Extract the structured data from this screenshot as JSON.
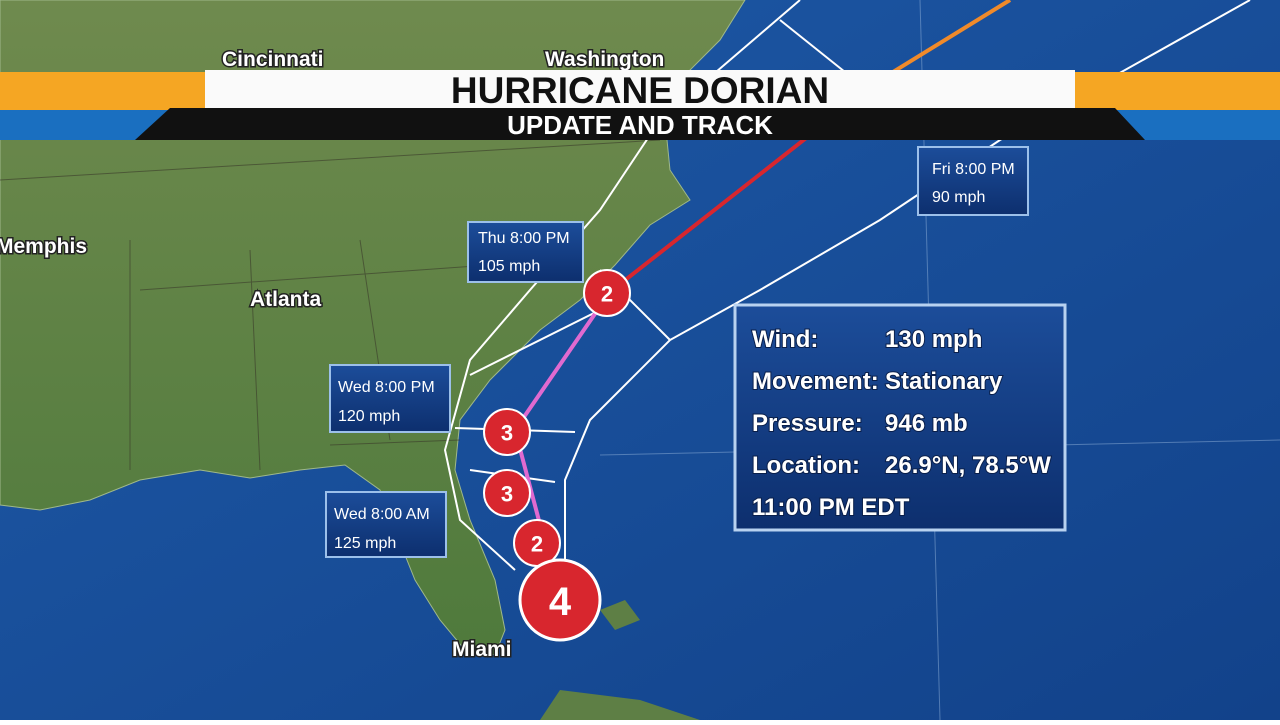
{
  "header": {
    "title": "HURRICANE DORIAN",
    "subtitle": "UPDATE AND TRACK"
  },
  "cities": [
    "Cincinnati",
    "Washington",
    "Memphis",
    "Atlanta",
    "Miami"
  ],
  "forecast_points": [
    {
      "time": "Fri 8:00 PM",
      "wind": "90 mph"
    },
    {
      "time": "Thu 8:00 PM",
      "wind": "105 mph"
    },
    {
      "time": "Wed 8:00 PM",
      "wind": "120 mph"
    },
    {
      "time": "Wed 8:00 AM",
      "wind": "125 mph"
    }
  ],
  "storm_markers": [
    "2",
    "3",
    "3",
    "2",
    "4"
  ],
  "info": {
    "rows": [
      {
        "label": "Wind:",
        "value": "130 mph"
      },
      {
        "label": "Movement:",
        "value": "Stationary"
      },
      {
        "label": "Pressure:",
        "value": "946 mb"
      },
      {
        "label": "Location:",
        "value": "26.9°N, 78.5°W"
      }
    ],
    "time": "11:00 PM EDT"
  }
}
